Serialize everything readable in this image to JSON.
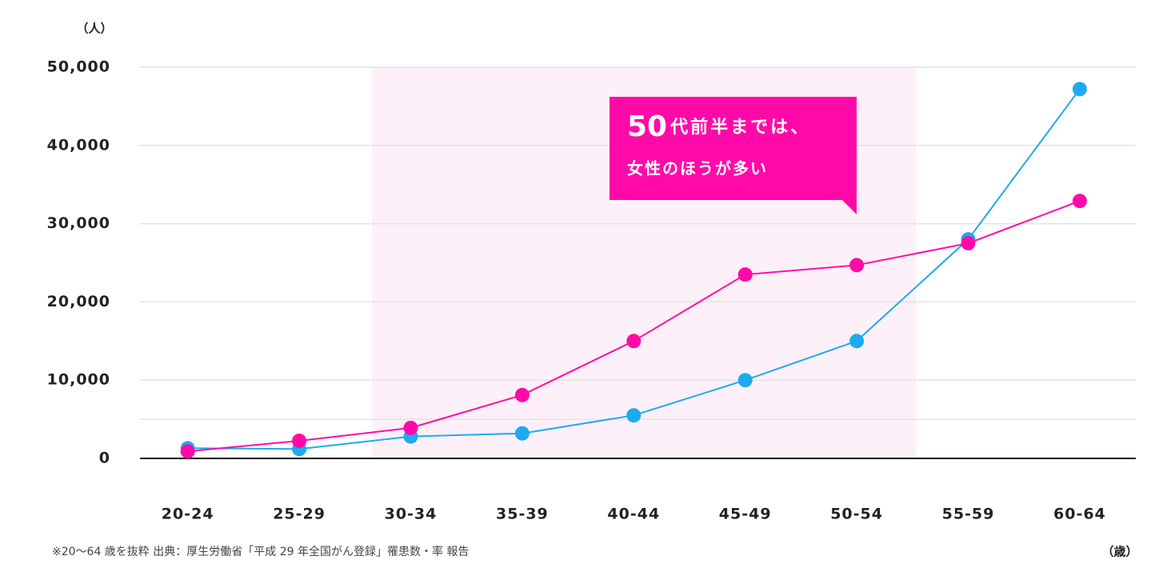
{
  "chart_data": {
    "type": "line",
    "y_unit": "（人）",
    "x_unit": "（歳）",
    "footnote": "※20～64 歳を抜粋 出典：厚生労働省「平成 29 年全国がん登録」罹患数・率 報告",
    "annotation": [
      "50",
      "代前半までは、",
      "女性のほうが多い"
    ],
    "categories": [
      "20-24",
      "25-29",
      "30-34",
      "35-39",
      "40-44",
      "45-49",
      "50-54",
      "55-59",
      "60-64"
    ],
    "series": [
      {
        "color": "#1eaaf1",
        "values": [
          1300,
          1200,
          2800,
          3200,
          5500,
          10000,
          15000,
          28000,
          47200
        ]
      },
      {
        "color": "#ff0aa8",
        "values": [
          900,
          2250,
          3900,
          8100,
          15000,
          23500,
          24700,
          27500,
          32900
        ]
      }
    ],
    "ylim": [
      0,
      50000
    ],
    "yticks": [
      0,
      {
        "value": 5000,
        "label": null
      },
      {
        "value": 10000,
        "label": "10,000"
      },
      {
        "value": 20000,
        "label": "20,000"
      },
      {
        "value": 30000,
        "label": "30,000"
      },
      {
        "value": 40000,
        "label": "40,000"
      },
      {
        "value": 50000,
        "label": "50,000"
      }
    ],
    "grid": true
  }
}
